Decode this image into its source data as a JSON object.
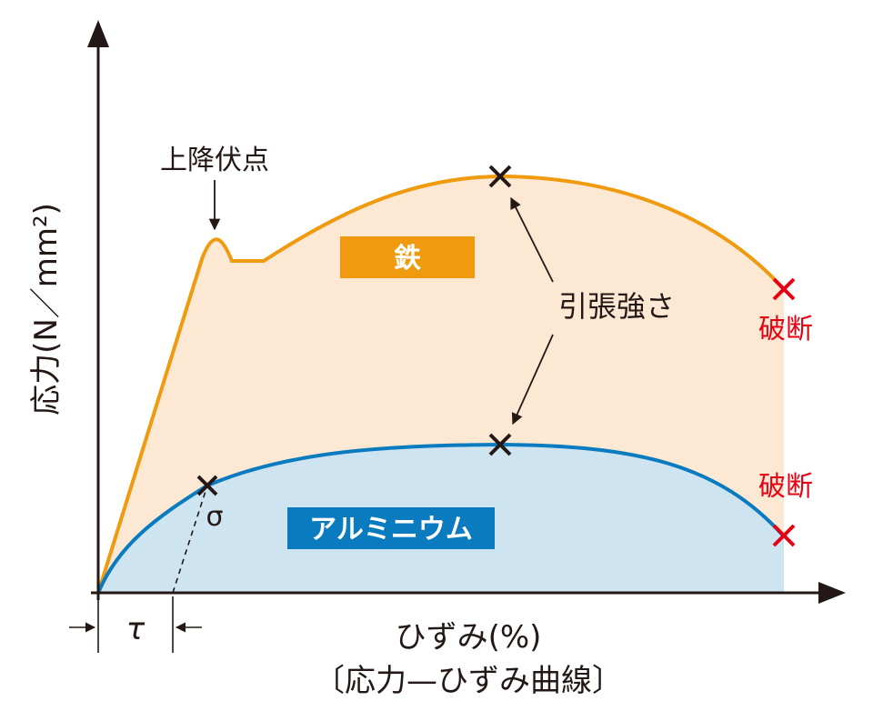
{
  "axes": {
    "y_label": "応力(N／mm²)",
    "x_label": "ひずみ(%)"
  },
  "caption": "〔応力—ひずみ曲線〕",
  "materials": {
    "iron": {
      "name": "鉄",
      "color": "#f09a0f",
      "fill": "#fde8d3"
    },
    "aluminum": {
      "name": "アルミニウム",
      "color": "#0a7bbf",
      "fill": "#cfe4f1"
    }
  },
  "annotations": {
    "upper_yield_point": "上降伏点",
    "tensile_strength": "引張強さ",
    "fracture_iron": "破断",
    "fracture_aluminum": "破断",
    "proof_stress_symbol": "σ",
    "offset_symbol": "τ"
  },
  "colors": {
    "axis": "#231815",
    "fracture_mark": "#e60012"
  }
}
